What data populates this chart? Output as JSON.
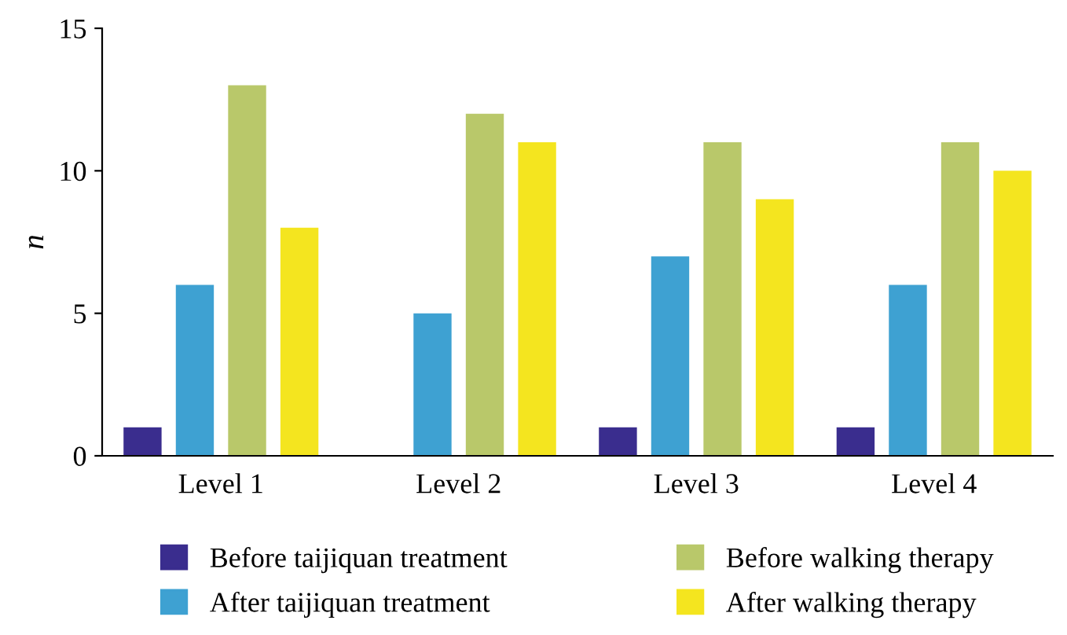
{
  "chart_data": {
    "type": "bar",
    "ylabel": "n",
    "categories": [
      "Level 1",
      "Level 2",
      "Level 3",
      "Level 4"
    ],
    "series": [
      {
        "name": "Before taijiquan treatment",
        "color": "#3a2d8e",
        "values": [
          1,
          0,
          1,
          1
        ]
      },
      {
        "name": "After taijiquan treatment",
        "color": "#3ea1d2",
        "values": [
          6,
          5,
          7,
          6
        ]
      },
      {
        "name": "Before walking therapy",
        "color": "#b9c86a",
        "values": [
          13,
          12,
          11,
          11
        ]
      },
      {
        "name": "After walking therapy",
        "color": "#f4e51f",
        "values": [
          8,
          11,
          9,
          10
        ]
      }
    ],
    "ylim": [
      0,
      15
    ],
    "yticks": [
      0,
      5,
      10,
      15
    ],
    "grid": false,
    "legend": "bottom"
  }
}
